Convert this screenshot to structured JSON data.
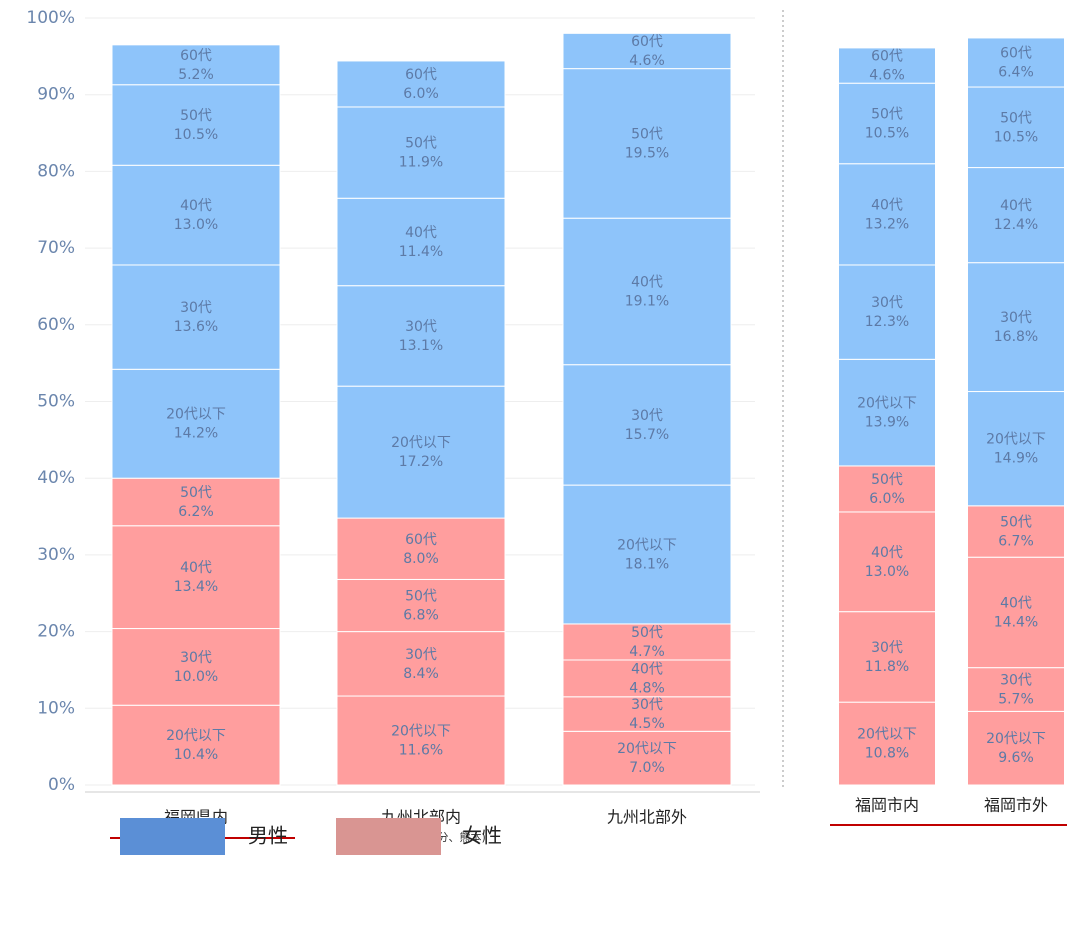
{
  "chart_data": [
    {
      "type": "stacked-bar",
      "yticks": [
        {
          "value": 0,
          "label": "0%"
        },
        {
          "value": 10,
          "label": "10%"
        },
        {
          "value": 20,
          "label": "20%"
        },
        {
          "value": 30,
          "label": "30%"
        },
        {
          "value": 40,
          "label": "40%"
        },
        {
          "value": 50,
          "label": "50%"
        },
        {
          "value": 60,
          "label": "60%"
        },
        {
          "value": 70,
          "label": "70%"
        },
        {
          "value": 80,
          "label": "80%"
        },
        {
          "value": 90,
          "label": "90%"
        },
        {
          "value": 100,
          "label": "100%"
        }
      ],
      "ylim": [
        0,
        100
      ],
      "grid": true,
      "groups": [
        {
          "name": "女性",
          "color": "#ff9e9e",
          "legend_color": "#d99592"
        },
        {
          "name": "男性",
          "color": "#8ec4fa",
          "legend_color": "#5b8fd6"
        }
      ],
      "bars": [
        {
          "category": "福岡県内",
          "segments": [
            {
              "group": 0,
              "label": "20代以下",
              "value": 10.4,
              "value_label": "10.4%"
            },
            {
              "group": 0,
              "label": "30代",
              "value": 10.0,
              "value_label": "10.0%"
            },
            {
              "group": 0,
              "label": "40代",
              "value": 13.4,
              "value_label": "13.4%"
            },
            {
              "group": 0,
              "label": "50代",
              "value": 6.2,
              "value_label": "6.2%"
            },
            {
              "group": 1,
              "label": "20代以下",
              "value": 14.2,
              "value_label": "14.2%"
            },
            {
              "group": 1,
              "label": "30代",
              "value": 13.6,
              "value_label": "13.6%"
            },
            {
              "group": 1,
              "label": "40代",
              "value": 13.0,
              "value_label": "13.0%"
            },
            {
              "group": 1,
              "label": "50代",
              "value": 10.5,
              "value_label": "10.5%"
            },
            {
              "group": 1,
              "label": "60代",
              "value": 5.2,
              "value_label": "5.2%"
            }
          ]
        },
        {
          "category": "九州北部内",
          "subcategory": "(佐賀、長崎、大分、熊本)",
          "segments": [
            {
              "group": 0,
              "label": "20代以下",
              "value": 11.6,
              "value_label": "11.6%"
            },
            {
              "group": 0,
              "label": "30代",
              "value": 8.4,
              "value_label": "8.4%"
            },
            {
              "group": 0,
              "label": "50代",
              "value": 6.8,
              "value_label": "6.8%"
            },
            {
              "group": 0,
              "label": "60代",
              "value": 8.0,
              "value_label": "8.0%"
            },
            {
              "group": 1,
              "label": "20代以下",
              "value": 17.2,
              "value_label": "17.2%"
            },
            {
              "group": 1,
              "label": "30代",
              "value": 13.1,
              "value_label": "13.1%"
            },
            {
              "group": 1,
              "label": "40代",
              "value": 11.4,
              "value_label": "11.4%"
            },
            {
              "group": 1,
              "label": "50代",
              "value": 11.9,
              "value_label": "11.9%"
            },
            {
              "group": 1,
              "label": "60代",
              "value": 6.0,
              "value_label": "6.0%"
            }
          ]
        },
        {
          "category": "九州北部外",
          "segments": [
            {
              "group": 0,
              "label": "20代以下",
              "value": 7.0,
              "value_label": "7.0%"
            },
            {
              "group": 0,
              "label": "30代",
              "value": 4.5,
              "value_label": "4.5%"
            },
            {
              "group": 0,
              "label": "40代",
              "value": 4.8,
              "value_label": "4.8%"
            },
            {
              "group": 0,
              "label": "50代",
              "value": 4.7,
              "value_label": "4.7%"
            },
            {
              "group": 1,
              "label": "20代以下",
              "value": 18.1,
              "value_label": "18.1%"
            },
            {
              "group": 1,
              "label": "30代",
              "value": 15.7,
              "value_label": "15.7%"
            },
            {
              "group": 1,
              "label": "40代",
              "value": 19.1,
              "value_label": "19.1%"
            },
            {
              "group": 1,
              "label": "50代",
              "value": 19.5,
              "value_label": "19.5%"
            },
            {
              "group": 1,
              "label": "60代",
              "value": 4.6,
              "value_label": "4.6%"
            }
          ]
        }
      ]
    },
    {
      "type": "stacked-bar",
      "ylim": [
        0,
        100
      ],
      "bars": [
        {
          "category": "福岡市内",
          "segments": [
            {
              "group": 0,
              "label": "20代以下",
              "value": 10.8,
              "value_label": "10.8%"
            },
            {
              "group": 0,
              "label": "30代",
              "value": 11.8,
              "value_label": "11.8%"
            },
            {
              "group": 0,
              "label": "40代",
              "value": 13.0,
              "value_label": "13.0%"
            },
            {
              "group": 0,
              "label": "50代",
              "value": 6.0,
              "value_label": "6.0%"
            },
            {
              "group": 1,
              "label": "20代以下",
              "value": 13.9,
              "value_label": "13.9%"
            },
            {
              "group": 1,
              "label": "30代",
              "value": 12.3,
              "value_label": "12.3%"
            },
            {
              "group": 1,
              "label": "40代",
              "value": 13.2,
              "value_label": "13.2%"
            },
            {
              "group": 1,
              "label": "50代",
              "value": 10.5,
              "value_label": "10.5%"
            },
            {
              "group": 1,
              "label": "60代",
              "value": 4.6,
              "value_label": "4.6%"
            }
          ]
        },
        {
          "category": "福岡市外",
          "segments": [
            {
              "group": 0,
              "label": "20代以下",
              "value": 9.6,
              "value_label": "9.6%"
            },
            {
              "group": 0,
              "label": "30代",
              "value": 5.7,
              "value_label": "5.7%"
            },
            {
              "group": 0,
              "label": "40代",
              "value": 14.4,
              "value_label": "14.4%"
            },
            {
              "group": 0,
              "label": "50代",
              "value": 6.7,
              "value_label": "6.7%"
            },
            {
              "group": 1,
              "label": "20代以下",
              "value": 14.9,
              "value_label": "14.9%"
            },
            {
              "group": 1,
              "label": "30代",
              "value": 16.8,
              "value_label": "16.8%"
            },
            {
              "group": 1,
              "label": "40代",
              "value": 12.4,
              "value_label": "12.4%"
            },
            {
              "group": 1,
              "label": "50代",
              "value": 10.5,
              "value_label": "10.5%"
            },
            {
              "group": 1,
              "label": "60代",
              "value": 6.4,
              "value_label": "6.4%"
            }
          ]
        }
      ]
    }
  ]
}
